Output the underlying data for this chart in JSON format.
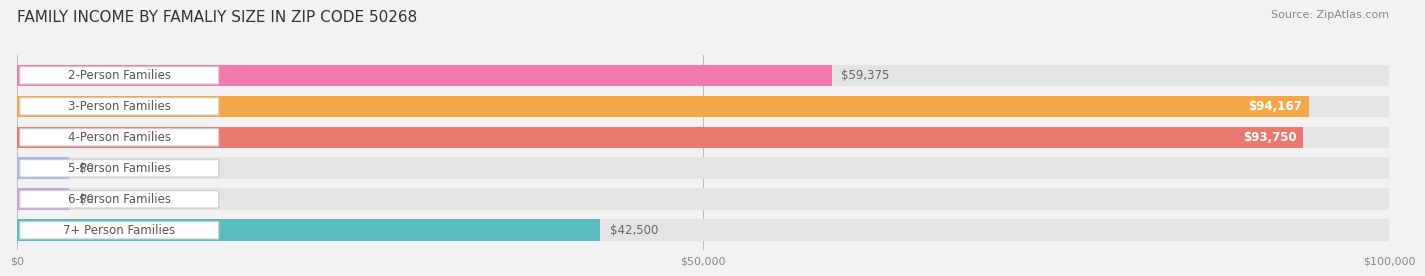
{
  "title": "FAMILY INCOME BY FAMALIY SIZE IN ZIP CODE 50268",
  "source": "Source: ZipAtlas.com",
  "categories": [
    "2-Person Families",
    "3-Person Families",
    "4-Person Families",
    "5-Person Families",
    "6-Person Families",
    "7+ Person Families"
  ],
  "values": [
    59375,
    94167,
    93750,
    0,
    0,
    42500
  ],
  "bar_colors": [
    "#f07aaa",
    "#f5a84a",
    "#e87870",
    "#a8b8e8",
    "#c4a8d8",
    "#5bbcbf"
  ],
  "value_labels": [
    "$59,375",
    "$94,167",
    "$93,750",
    "$0",
    "$0",
    "$42,500"
  ],
  "value_inside": [
    false,
    true,
    true,
    false,
    false,
    false
  ],
  "xlim": [
    0,
    100000
  ],
  "xticks": [
    0,
    50000,
    100000
  ],
  "xtick_labels": [
    "$0",
    "$50,000",
    "$100,000"
  ],
  "bg_color": "#f2f2f2",
  "bar_bg_color": "#e4e4e4",
  "title_fontsize": 11,
  "label_fontsize": 8.5,
  "value_fontsize": 8.5,
  "source_fontsize": 8
}
